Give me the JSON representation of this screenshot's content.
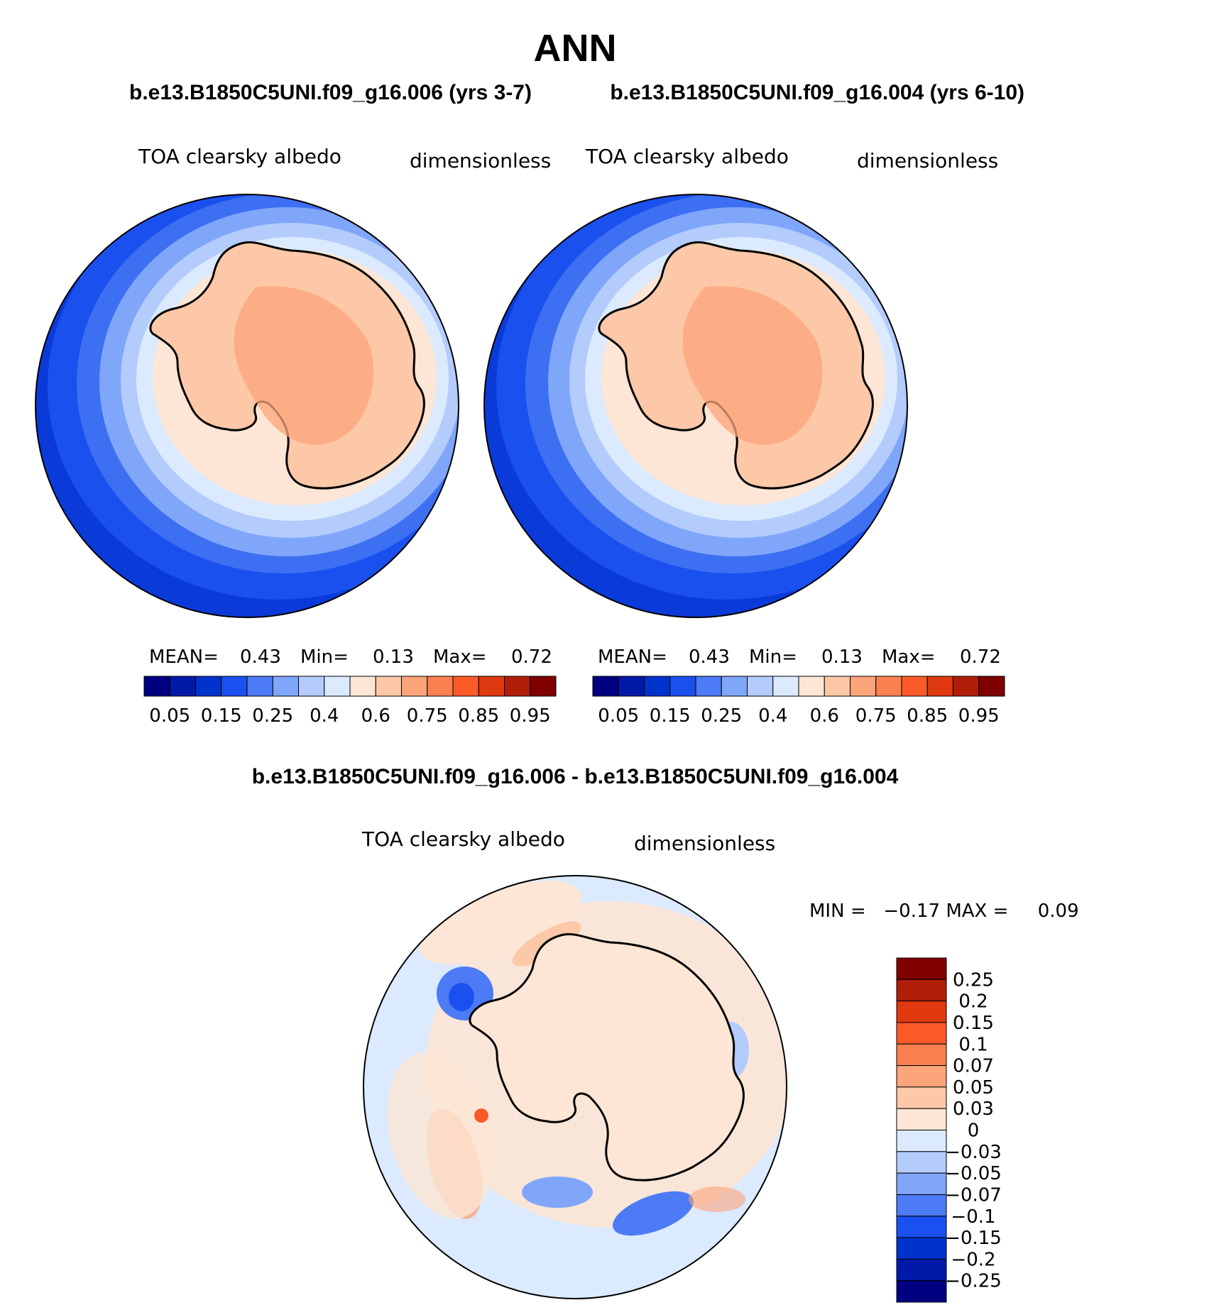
{
  "season": "ANN",
  "case_test": {
    "title": "b.e13.B1850C5UNI.f09_g16.006 (yrs 3-7)",
    "variable": "TOA clearsky albedo",
    "units": "dimensionless",
    "stats": {
      "mean_label": "MEAN=",
      "mean": "0.43",
      "min_label": "Min=",
      "min": "0.13",
      "max_label": "Max=",
      "max": "0.72"
    }
  },
  "case_ref": {
    "title": "b.e13.B1850C5UNI.f09_g16.004 (yrs 6-10)",
    "variable": "TOA clearsky albedo",
    "units": "dimensionless",
    "stats": {
      "mean_label": "MEAN=",
      "mean": "0.43",
      "min_label": "Min=",
      "min": "0.13",
      "max_label": "Max=",
      "max": "0.72"
    }
  },
  "diff": {
    "title": "b.e13.B1850C5UNI.f09_g16.006 - b.e13.B1850C5UNI.f09_g16.004",
    "variable": "TOA clearsky albedo",
    "units": "dimensionless",
    "minmax_text": "MIN =   −0.17 MAX =     0.09"
  },
  "colorbar_abs": {
    "colors": [
      "#000080",
      "#0019a8",
      "#0033cc",
      "#1a4ff0",
      "#4d7af5",
      "#80a6fa",
      "#b3ccfc",
      "#dbeafe",
      "#fde6d5",
      "#fcc8a8",
      "#fca47a",
      "#fb8050",
      "#fa5a28",
      "#e0380f",
      "#b01e0a",
      "#800000"
    ],
    "tick_labels": [
      "0.05",
      "0.15",
      "0.25",
      "0.4",
      "0.6",
      "0.75",
      "0.85",
      "0.95"
    ]
  },
  "colorbar_diff": {
    "colors": [
      "#000080",
      "#0019a8",
      "#0033cc",
      "#1a4ff0",
      "#4d7af5",
      "#80a6fa",
      "#b3ccfc",
      "#dbeafe",
      "#fde6d5",
      "#fcc8a8",
      "#fca47a",
      "#fb8050",
      "#fa5a28",
      "#e0380f",
      "#b01e0a",
      "#800000"
    ],
    "tick_labels": [
      "0.25",
      "0.2",
      "0.15",
      "0.1",
      "0.07",
      "0.05",
      "0.03",
      "0",
      "−0.03",
      "−0.05",
      "−0.07",
      "−0.1",
      "−0.15",
      "−0.2",
      "−0.25"
    ]
  }
}
